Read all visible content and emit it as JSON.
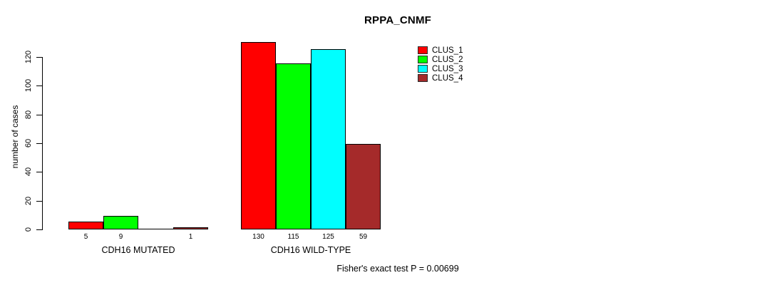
{
  "title": "RPPA_CNMF",
  "footer": "Fisher's exact test P = 0.00699",
  "y_axis": {
    "label": "number of cases",
    "ticks": [
      0,
      20,
      40,
      60,
      80,
      100,
      120
    ]
  },
  "chart_data": {
    "type": "bar",
    "title": "RPPA_CNMF",
    "xlabel": "",
    "ylabel": "number of cases",
    "ylim": [
      0,
      130
    ],
    "grid": false,
    "legend_position": "top-right",
    "categories": [
      "CDH16 MUTATED",
      "CDH16 WILD-TYPE"
    ],
    "series": [
      {
        "name": "CLUS_1",
        "color": "#FF0000",
        "values": [
          5,
          130
        ]
      },
      {
        "name": "CLUS_2",
        "color": "#00FF00",
        "values": [
          9,
          115
        ]
      },
      {
        "name": "CLUS_3",
        "color": "#00FFFF",
        "values": [
          0,
          125
        ]
      },
      {
        "name": "CLUS_4",
        "color": "#A52A2A",
        "values": [
          1,
          59
        ]
      }
    ],
    "bar_value_labels": [
      [
        "5",
        "9",
        "",
        "1"
      ],
      [
        "130",
        "115",
        "125",
        "59"
      ]
    ],
    "annotation": "Fisher's exact test P = 0.00699"
  }
}
